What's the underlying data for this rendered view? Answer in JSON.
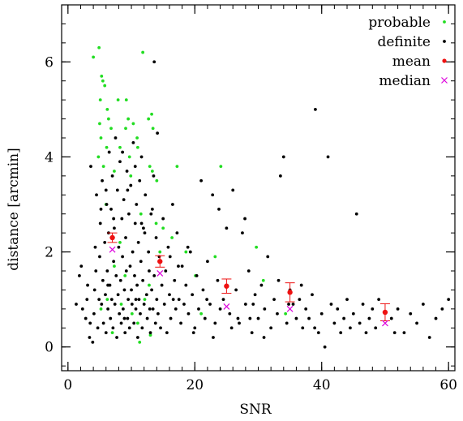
{
  "chart_data": {
    "type": "scatter",
    "title": "",
    "xlabel": "SNR",
    "ylabel": "distance [arcmin]",
    "xlim": [
      -1,
      61
    ],
    "ylim": [
      -0.5,
      7.2
    ],
    "xticks": [
      0,
      20,
      40,
      60
    ],
    "yticks": [
      0,
      2,
      4,
      6
    ],
    "x_minor_step": 2,
    "y_minor_step": 0.4,
    "grid": false,
    "legend_position": "top-right",
    "colors": {
      "probable": "#22dd22",
      "definite": "#000000",
      "mean": "#ee1111",
      "median": "#dd00dd",
      "axes": "#000000"
    },
    "series": [
      {
        "name": "probable",
        "marker": "dot",
        "points": [
          [
            4.0,
            6.1
          ],
          [
            4.9,
            6.3
          ],
          [
            5.3,
            5.7
          ],
          [
            5.5,
            5.6
          ],
          [
            5.8,
            5.5
          ],
          [
            5.1,
            5.2
          ],
          [
            6.2,
            5.0
          ],
          [
            7.9,
            5.2
          ],
          [
            9.2,
            5.2
          ],
          [
            11.8,
            6.2
          ],
          [
            12.7,
            4.8
          ],
          [
            13.2,
            4.9
          ],
          [
            13.4,
            4.6
          ],
          [
            6.4,
            4.8
          ],
          [
            6.8,
            4.6
          ],
          [
            5.0,
            4.7
          ],
          [
            5.2,
            4.4
          ],
          [
            6.1,
            4.2
          ],
          [
            4.8,
            4.0
          ],
          [
            9.5,
            4.8
          ],
          [
            9.1,
            4.6
          ],
          [
            10.3,
            4.7
          ],
          [
            10.9,
            4.4
          ],
          [
            11.0,
            4.2
          ],
          [
            8.2,
            4.2
          ],
          [
            9.7,
            4.0
          ],
          [
            5.6,
            3.8
          ],
          [
            7.3,
            3.7
          ],
          [
            9.9,
            3.6
          ],
          [
            12.9,
            3.8
          ],
          [
            13.3,
            3.7
          ],
          [
            14.0,
            3.5
          ],
          [
            17.2,
            3.8
          ],
          [
            24.1,
            3.8
          ],
          [
            6.0,
            3.0
          ],
          [
            11.5,
            2.8
          ],
          [
            8.2,
            2.2
          ],
          [
            13.9,
            2.6
          ],
          [
            14.5,
            2.0
          ],
          [
            15.0,
            2.5
          ],
          [
            16.4,
            2.3
          ],
          [
            18.6,
            2.0
          ],
          [
            20.1,
            1.5
          ],
          [
            23.2,
            1.9
          ],
          [
            29.7,
            2.1
          ],
          [
            7.3,
            1.7
          ],
          [
            9.0,
            1.5
          ],
          [
            12.8,
            1.3
          ],
          [
            6.2,
            1.0
          ],
          [
            5.2,
            0.8
          ],
          [
            10.1,
            0.7
          ],
          [
            11.0,
            0.5
          ],
          [
            21.0,
            0.7
          ],
          [
            13.0,
            0.25
          ],
          [
            11.3,
            0.1
          ],
          [
            7.0,
            0.3
          ],
          [
            8.4,
            0.9
          ],
          [
            30.8,
            1.4
          ],
          [
            34.3,
            0.7
          ],
          [
            12.1,
            1.0
          ]
        ]
      },
      {
        "name": "definite",
        "marker": "dot",
        "points": [
          [
            1.3,
            0.9
          ],
          [
            1.8,
            1.5
          ],
          [
            2.1,
            1.7
          ],
          [
            2.3,
            0.8
          ],
          [
            2.8,
            0.6
          ],
          [
            3.0,
            1.0
          ],
          [
            3.1,
            1.3
          ],
          [
            3.4,
            0.2
          ],
          [
            3.6,
            3.8
          ],
          [
            3.9,
            0.1
          ],
          [
            4.1,
            0.7
          ],
          [
            4.2,
            1.2
          ],
          [
            4.3,
            2.1
          ],
          [
            4.5,
            3.2
          ],
          [
            4.7,
            0.4
          ],
          [
            4.9,
            1.0
          ],
          [
            5.0,
            1.9
          ],
          [
            5.1,
            2.6
          ],
          [
            5.3,
            0.9
          ],
          [
            5.4,
            3.5
          ],
          [
            5.5,
            1.4
          ],
          [
            5.6,
            0.5
          ],
          [
            5.8,
            2.2
          ],
          [
            5.9,
            1.1
          ],
          [
            6.0,
            0.3
          ],
          [
            6.1,
            3.0
          ],
          [
            6.2,
            1.6
          ],
          [
            6.3,
            0.8
          ],
          [
            6.4,
            2.4
          ],
          [
            6.5,
            4.1
          ],
          [
            6.6,
            1.3
          ],
          [
            6.7,
            0.6
          ],
          [
            6.8,
            2.9
          ],
          [
            6.9,
            1.0
          ],
          [
            7.0,
            3.6
          ],
          [
            7.1,
            0.4
          ],
          [
            7.2,
            1.8
          ],
          [
            7.3,
            2.5
          ],
          [
            7.4,
            0.9
          ],
          [
            7.5,
            4.4
          ],
          [
            7.6,
            1.5
          ],
          [
            7.7,
            0.2
          ],
          [
            7.8,
            3.3
          ],
          [
            7.9,
            1.1
          ],
          [
            8.0,
            2.1
          ],
          [
            8.1,
            0.7
          ],
          [
            8.2,
            3.9
          ],
          [
            8.3,
            1.4
          ],
          [
            8.4,
            0.5
          ],
          [
            8.5,
            2.7
          ],
          [
            8.6,
            1.9
          ],
          [
            8.7,
            0.8
          ],
          [
            8.8,
            3.1
          ],
          [
            8.9,
            1.2
          ],
          [
            9.0,
            0.3
          ],
          [
            9.1,
            2.3
          ],
          [
            9.2,
            1.6
          ],
          [
            9.3,
            3.7
          ],
          [
            9.4,
            0.6
          ],
          [
            9.5,
            1.0
          ],
          [
            9.6,
            2.8
          ],
          [
            9.7,
            0.4
          ],
          [
            9.8,
            1.7
          ],
          [
            9.9,
            3.4
          ],
          [
            10.0,
            1.2
          ],
          [
            10.1,
            0.9
          ],
          [
            10.2,
            2.0
          ],
          [
            10.3,
            4.3
          ],
          [
            10.4,
            0.5
          ],
          [
            10.5,
            1.5
          ],
          [
            10.6,
            2.6
          ],
          [
            10.7,
            0.8
          ],
          [
            10.8,
            3.0
          ],
          [
            10.9,
            1.3
          ],
          [
            11.0,
            0.2
          ],
          [
            11.1,
            2.2
          ],
          [
            11.2,
            1.0
          ],
          [
            11.3,
            3.5
          ],
          [
            11.4,
            0.7
          ],
          [
            11.5,
            1.8
          ],
          [
            11.6,
            4.0
          ],
          [
            11.7,
            0.4
          ],
          [
            11.8,
            1.4
          ],
          [
            11.9,
            2.5
          ],
          [
            12.0,
            0.9
          ],
          [
            12.2,
            3.2
          ],
          [
            12.4,
            1.1
          ],
          [
            12.5,
            0.6
          ],
          [
            12.7,
            2.0
          ],
          [
            12.8,
            1.6
          ],
          [
            13.0,
            0.3
          ],
          [
            13.1,
            2.8
          ],
          [
            13.2,
            1.2
          ],
          [
            13.4,
            0.8
          ],
          [
            13.5,
            3.6
          ],
          [
            13.6,
            1.5
          ],
          [
            13.8,
            0.5
          ],
          [
            13.9,
            2.3
          ],
          [
            14.0,
            1.0
          ],
          [
            14.1,
            4.5
          ],
          [
            14.2,
            0.7
          ],
          [
            14.4,
            1.9
          ],
          [
            14.6,
            0.4
          ],
          [
            14.8,
            1.3
          ],
          [
            15.0,
            2.7
          ],
          [
            15.2,
            0.9
          ],
          [
            15.4,
            1.6
          ],
          [
            15.6,
            0.3
          ],
          [
            15.8,
            2.1
          ],
          [
            16.0,
            1.1
          ],
          [
            16.2,
            0.6
          ],
          [
            16.5,
            3.0
          ],
          [
            16.8,
            1.4
          ],
          [
            17.0,
            0.8
          ],
          [
            17.2,
            2.4
          ],
          [
            17.5,
            1.0
          ],
          [
            17.8,
            0.5
          ],
          [
            18.0,
            1.7
          ],
          [
            18.3,
            0.9
          ],
          [
            18.6,
            1.3
          ],
          [
            19.0,
            0.7
          ],
          [
            19.3,
            2.0
          ],
          [
            19.6,
            1.1
          ],
          [
            20.0,
            0.4
          ],
          [
            20.3,
            1.5
          ],
          [
            20.6,
            0.8
          ],
          [
            21.0,
            3.5
          ],
          [
            21.3,
            1.2
          ],
          [
            21.6,
            0.6
          ],
          [
            22.0,
            1.8
          ],
          [
            22.4,
            0.9
          ],
          [
            22.8,
            3.2
          ],
          [
            23.2,
            0.5
          ],
          [
            23.6,
            1.4
          ],
          [
            24.0,
            0.8
          ],
          [
            24.5,
            1.0
          ],
          [
            25.0,
            2.5
          ],
          [
            25.5,
            0.7
          ],
          [
            26.0,
            3.3
          ],
          [
            26.5,
            1.2
          ],
          [
            27.0,
            0.5
          ],
          [
            27.5,
            2.4
          ],
          [
            28.0,
            0.9
          ],
          [
            28.5,
            1.6
          ],
          [
            29.0,
            0.3
          ],
          [
            29.5,
            1.1
          ],
          [
            30.0,
            0.6
          ],
          [
            30.5,
            1.3
          ],
          [
            31.0,
            0.8
          ],
          [
            31.5,
            1.9
          ],
          [
            32.0,
            0.4
          ],
          [
            32.5,
            1.0
          ],
          [
            33.0,
            0.7
          ],
          [
            33.5,
            3.6
          ],
          [
            34.0,
            4.0
          ],
          [
            34.5,
            0.5
          ],
          [
            35.0,
            1.2
          ],
          [
            35.5,
            0.9
          ],
          [
            36.0,
            0.6
          ],
          [
            36.5,
            1.0
          ],
          [
            37.0,
            0.4
          ],
          [
            37.5,
            0.8
          ],
          [
            38.0,
            0.6
          ],
          [
            38.5,
            1.1
          ],
          [
            39.0,
            5.0
          ],
          [
            39.5,
            0.3
          ],
          [
            40.0,
            0.7
          ],
          [
            40.5,
            0.0
          ],
          [
            41.0,
            4.0
          ],
          [
            41.5,
            0.9
          ],
          [
            42.0,
            0.5
          ],
          [
            42.5,
            0.8
          ],
          [
            43.0,
            0.3
          ],
          [
            43.5,
            0.6
          ],
          [
            44.0,
            1.0
          ],
          [
            44.5,
            0.4
          ],
          [
            45.0,
            0.7
          ],
          [
            45.5,
            2.8
          ],
          [
            46.0,
            0.5
          ],
          [
            46.5,
            0.9
          ],
          [
            47.0,
            0.3
          ],
          [
            47.5,
            0.6
          ],
          [
            48.0,
            0.8
          ],
          [
            48.5,
            0.4
          ],
          [
            49.0,
            1.0
          ],
          [
            51.0,
            0.6
          ],
          [
            51.5,
            0.3
          ],
          [
            52.0,
            0.8
          ],
          [
            53.0,
            0.3
          ],
          [
            54.0,
            0.7
          ],
          [
            55.0,
            0.5
          ],
          [
            56.0,
            0.9
          ],
          [
            57.0,
            0.2
          ],
          [
            58.0,
            0.6
          ],
          [
            59.0,
            0.8
          ],
          [
            60.0,
            1.0
          ],
          [
            3.5,
            0.5
          ],
          [
            4.4,
            1.6
          ],
          [
            5.2,
            2.9
          ],
          [
            6.0,
            3.3
          ],
          [
            7.2,
            2.7
          ],
          [
            8.6,
            4.1
          ],
          [
            9.4,
            3.3
          ],
          [
            10.6,
            3.8
          ],
          [
            12.1,
            2.4
          ],
          [
            13.3,
            2.9
          ],
          [
            16.1,
            1.9
          ],
          [
            17.4,
            1.7
          ],
          [
            18.9,
            2.1
          ],
          [
            21.9,
            1.0
          ],
          [
            23.8,
            2.9
          ],
          [
            26.8,
            0.6
          ],
          [
            27.9,
            2.7
          ],
          [
            29.2,
            0.9
          ],
          [
            33.2,
            1.4
          ],
          [
            36.8,
            1.3
          ],
          [
            13.6,
            6.0
          ],
          [
            11.6,
            2.6
          ],
          [
            8.9,
            0.6
          ],
          [
            6.3,
            1.3
          ],
          [
            10.7,
            1.0
          ],
          [
            16.6,
            1.0
          ],
          [
            19.8,
            0.3
          ],
          [
            22.9,
            0.2
          ],
          [
            25.8,
            0.4
          ],
          [
            28.7,
            0.6
          ],
          [
            30.9,
            0.2
          ],
          [
            34.8,
            0.9
          ],
          [
            38.9,
            0.4
          ],
          [
            12.9,
            0.8
          ]
        ]
      },
      {
        "name": "mean",
        "marker": "filled-circle",
        "points": [
          [
            7.0,
            2.3
          ],
          [
            14.5,
            1.8
          ],
          [
            25.0,
            1.28
          ],
          [
            35.0,
            1.15
          ],
          [
            50.0,
            0.73
          ]
        ],
        "errors": [
          0.1,
          0.12,
          0.15,
          0.2,
          0.18
        ]
      },
      {
        "name": "median",
        "marker": "x",
        "points": [
          [
            7.0,
            2.05
          ],
          [
            14.5,
            1.55
          ],
          [
            25.0,
            0.85
          ],
          [
            35.0,
            0.8
          ],
          [
            50.0,
            0.5
          ]
        ]
      }
    ]
  }
}
